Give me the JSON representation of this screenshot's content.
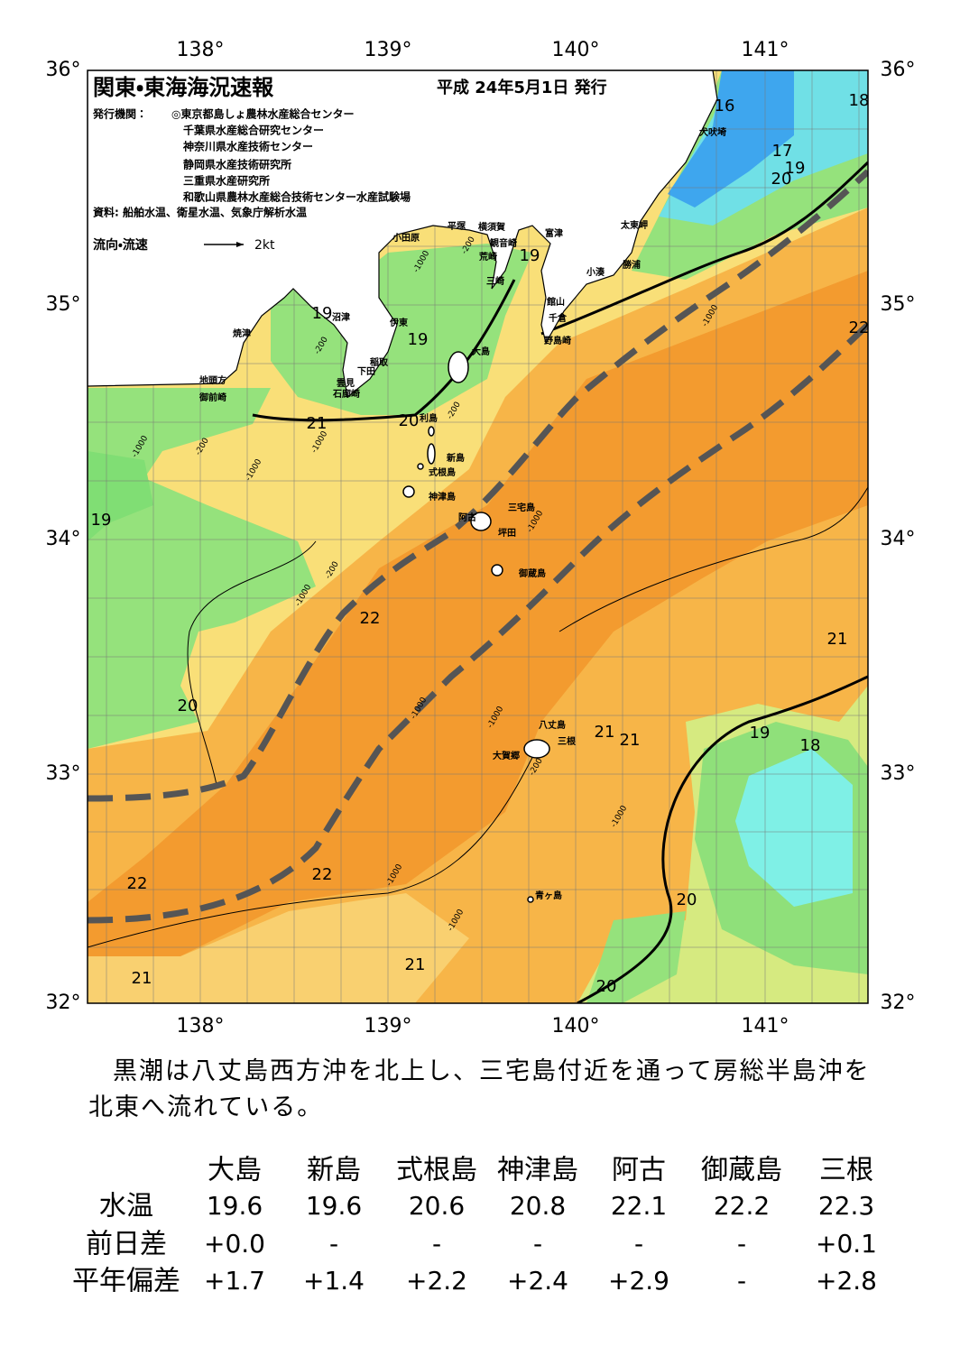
{
  "header": {
    "title": "関東・東海海況速報",
    "date": "平成 24年5月1日 発行",
    "issuers_label": "発行機関：",
    "issuers": [
      "◎東京都島しょ農林水産総合センター",
      "千葉県水産総合研究センター",
      "神奈川県水産技術センター",
      "静岡県水産技術研究所",
      "三重県水産研究所",
      "和歌山県農林水産総合技術センター水産試験場"
    ],
    "sources": "資料: 船舶水温、衛星水温、気象庁解析水温",
    "legend": "流向・流速",
    "legend_unit": "2kt"
  },
  "map": {
    "lon_labels": [
      "138°",
      "139°",
      "140°",
      "141°"
    ],
    "lat_labels": [
      "36°",
      "35°",
      "34°",
      "33°",
      "32°"
    ],
    "places": [
      "犬吠埼",
      "太東岬",
      "勝浦",
      "小湊",
      "富津",
      "館山",
      "千倉",
      "野島崎",
      "横須賀",
      "観音崎",
      "荒崎",
      "三崎",
      "平塚",
      "小田原",
      "沼津",
      "焼津",
      "伊東",
      "稲取",
      "下田",
      "雲見",
      "石廊崎",
      "地頭方",
      "御前崎",
      "大島",
      "利島",
      "新島",
      "式根島",
      "神津島",
      "三宅島",
      "阿古",
      "坪田",
      "御蔵島",
      "八丈島",
      "三根",
      "大賀郷",
      "青ヶ島"
    ],
    "temperature_labels": [
      "16",
      "18",
      "17",
      "19",
      "20",
      "19",
      "19",
      "19",
      "22",
      "21",
      "20",
      "19",
      "22",
      "21",
      "20",
      "21",
      "21",
      "19",
      "18",
      "22",
      "22",
      "20",
      "21",
      "21",
      "20"
    ],
    "depth_labels": [
      "-200",
      "-1000",
      "-200",
      "-1000",
      "-1000",
      "-200",
      "-1000",
      "-200",
      "-1000",
      "-1000",
      "-1000",
      "-1000",
      "-1000",
      "-200",
      "-1000",
      "-1000",
      "-1000",
      "-200"
    ]
  },
  "summary": "黒潮は八丈島西方沖を北上し、三宅島付近を通って房総半島沖を北東へ流れている。",
  "table": {
    "columns": [
      "大島",
      "新島",
      "式根島",
      "神津島",
      "阿古",
      "御蔵島",
      "三根"
    ],
    "rows": [
      {
        "label": "水温",
        "values": [
          "19.6",
          "19.6",
          "20.6",
          "20.8",
          "22.1",
          "22.2",
          "22.3"
        ]
      },
      {
        "label": "前日差",
        "values": [
          "+0.0",
          "-",
          "-",
          "-",
          "-",
          "-",
          "+0.1"
        ]
      },
      {
        "label": "平年偏差",
        "values": [
          "+1.7",
          "+1.4",
          "+2.2",
          "+2.4",
          "+2.9",
          "-",
          "+2.8"
        ]
      }
    ]
  }
}
